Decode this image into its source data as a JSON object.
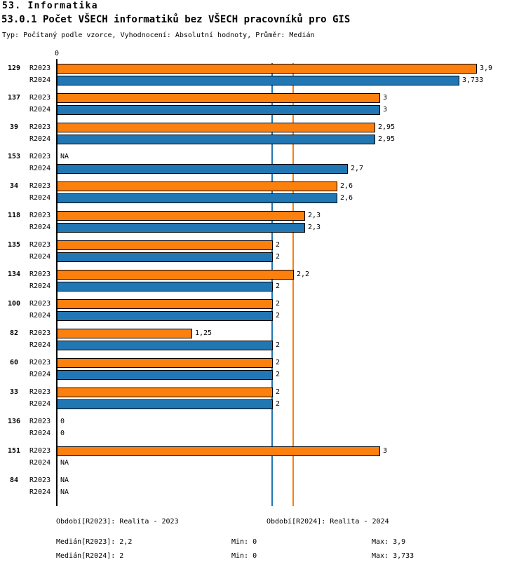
{
  "title": "53. Informatika",
  "subtitle": "53.0.1 Počet VŠECH informatiků bez VŠECH pracovníků pro GIS",
  "meta": "Typ: Počítaný podle vzorce, Vyhodnocení: Absolutní hodnoty, Průměr: Medián",
  "chart_data": {
    "type": "bar",
    "orientation": "horizontal",
    "grid": false,
    "legend_position": "none",
    "x_axis": {
      "origin_tick_label": "0",
      "min": 0,
      "max_displayed": 4.35
    },
    "series": [
      {
        "name": "R2023",
        "color": "#fb800e"
      },
      {
        "name": "R2024",
        "color": "#2176b4"
      }
    ],
    "categories": [
      "129",
      "137",
      "39",
      "153",
      "34",
      "118",
      "135",
      "134",
      "100",
      "82",
      "60",
      "33",
      "136",
      "151",
      "84"
    ],
    "rows": [
      {
        "category": "129",
        "values": {
          "R2023": {
            "value": 3.9,
            "label": "3,9"
          },
          "R2024": {
            "value": 3.733,
            "label": "3,733"
          }
        }
      },
      {
        "category": "137",
        "values": {
          "R2023": {
            "value": 3,
            "label": "3"
          },
          "R2024": {
            "value": 3,
            "label": "3"
          }
        }
      },
      {
        "category": "39",
        "values": {
          "R2023": {
            "value": 2.95,
            "label": "2,95"
          },
          "R2024": {
            "value": 2.95,
            "label": "2,95"
          }
        }
      },
      {
        "category": "153",
        "values": {
          "R2023": {
            "value": null,
            "label": "NA"
          },
          "R2024": {
            "value": 2.7,
            "label": "2,7"
          }
        }
      },
      {
        "category": "34",
        "values": {
          "R2023": {
            "value": 2.6,
            "label": "2,6"
          },
          "R2024": {
            "value": 2.6,
            "label": "2,6"
          }
        }
      },
      {
        "category": "118",
        "values": {
          "R2023": {
            "value": 2.3,
            "label": "2,3"
          },
          "R2024": {
            "value": 2.3,
            "label": "2,3"
          }
        }
      },
      {
        "category": "135",
        "values": {
          "R2023": {
            "value": 2,
            "label": "2"
          },
          "R2024": {
            "value": 2,
            "label": "2"
          }
        }
      },
      {
        "category": "134",
        "values": {
          "R2023": {
            "value": 2.2,
            "label": "2,2"
          },
          "R2024": {
            "value": 2,
            "label": "2"
          }
        }
      },
      {
        "category": "100",
        "values": {
          "R2023": {
            "value": 2,
            "label": "2"
          },
          "R2024": {
            "value": 2,
            "label": "2"
          }
        }
      },
      {
        "category": "82",
        "values": {
          "R2023": {
            "value": 1.25,
            "label": "1,25"
          },
          "R2024": {
            "value": 2,
            "label": "2"
          }
        }
      },
      {
        "category": "60",
        "values": {
          "R2023": {
            "value": 2,
            "label": "2"
          },
          "R2024": {
            "value": 2,
            "label": "2"
          }
        }
      },
      {
        "category": "33",
        "values": {
          "R2023": {
            "value": 2,
            "label": "2"
          },
          "R2024": {
            "value": 2,
            "label": "2"
          }
        }
      },
      {
        "category": "136",
        "values": {
          "R2023": {
            "value": 0,
            "label": "0"
          },
          "R2024": {
            "value": 0,
            "label": "0"
          }
        }
      },
      {
        "category": "151",
        "values": {
          "R2023": {
            "value": 3,
            "label": "3"
          },
          "R2024": {
            "value": null,
            "label": "NA"
          }
        }
      },
      {
        "category": "84",
        "values": {
          "R2023": {
            "value": null,
            "label": "NA"
          },
          "R2024": {
            "value": null,
            "label": "NA"
          }
        }
      }
    ],
    "reference_lines": [
      {
        "series": "R2024",
        "name": "median-r2024",
        "value": 2,
        "color": "#2176b4"
      },
      {
        "series": "R2023",
        "name": "median-r2023",
        "value": 2.2,
        "color": "#fb800e"
      }
    ]
  },
  "footer": {
    "period_r2023": "Období[R2023]: Realita - 2023",
    "period_r2024": "Období[R2024]: Realita - 2024",
    "stats_r2023": {
      "median": "Medián[R2023]: 2,2",
      "min": "Min: 0",
      "max": "Max: 3,9"
    },
    "stats_r2024": {
      "median": "Medián[R2024]: 2",
      "min": "Min: 0",
      "max": "Max: 3,733"
    }
  }
}
